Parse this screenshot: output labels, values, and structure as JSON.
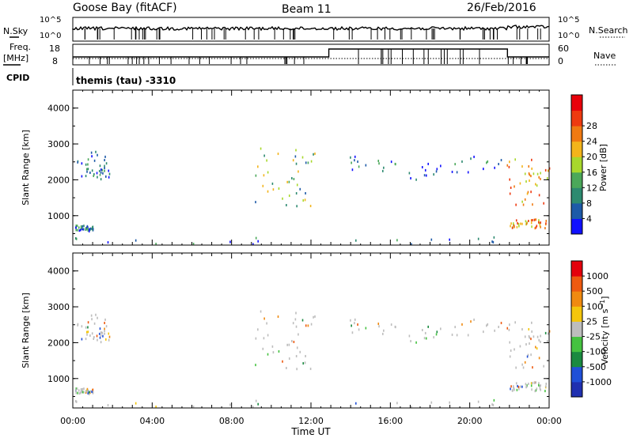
{
  "header": {
    "station": "Goose Bay (fitACF)",
    "beam": "Beam 11",
    "date": "26/Feb/2016"
  },
  "top_panels": {
    "nsky_label": "N.Sky",
    "nsearch_label": "N.Search",
    "noise_ticks": [
      "10^5",
      "10^0"
    ],
    "freq_label": "Freq.",
    "freq_unit": "[MHz]",
    "freq_ticks": [
      "18",
      "8"
    ],
    "nave_label": "Nave",
    "nave_ticks": [
      "60",
      "0"
    ],
    "cpid_label": "CPID",
    "cpid_text": "themis (tau) -3310"
  },
  "chart_data": [
    {
      "type": "scatter",
      "title": "Power",
      "xlabel": "Time UT",
      "ylabel": "Slant Range [km]",
      "xticks": [
        "00:00",
        "04:00",
        "08:00",
        "12:00",
        "16:00",
        "20:00",
        "00:00"
      ],
      "xlim_hours": [
        0,
        24
      ],
      "yticks": [
        "1000",
        "2000",
        "3000",
        "4000"
      ],
      "ylim_km": [
        180,
        4500
      ],
      "colorbar": {
        "label": "Power [dB]",
        "ticks": [
          "4",
          "8",
          "12",
          "16",
          "20",
          "24",
          "28"
        ],
        "range": [
          0,
          32
        ],
        "colors": [
          "#1010ff",
          "#1d5aa8",
          "#2d8a70",
          "#4ba85a",
          "#a8d82c",
          "#f3b41b",
          "#f07a12",
          "#ee3a10",
          "#e8000a"
        ]
      },
      "scatter_regions": [
        {
          "name": "early-echo",
          "t": [
            0.2,
            1.9
          ],
          "r": [
            2000,
            2800
          ],
          "color": "#1d5aa8"
        },
        {
          "name": "near-range-early",
          "t": [
            0.1,
            1.0
          ],
          "r": [
            560,
            720
          ],
          "color": "#1d5aa8"
        },
        {
          "name": "near-ground",
          "t": [
            0,
            22.0
          ],
          "r": [
            200,
            400
          ],
          "color": "#1d5aa8"
        },
        {
          "name": "mid-night-echo",
          "t": [
            8.9,
            12.2
          ],
          "r": [
            1250,
            2900
          ],
          "color": "#4ba85a"
        },
        {
          "name": "midday-band",
          "t": [
            13.8,
            21.8
          ],
          "r": [
            2000,
            2900
          ],
          "color": "#1d5aa8"
        },
        {
          "name": "late-strong",
          "t": [
            21.8,
            24.0
          ],
          "r": [
            1300,
            2600
          ],
          "color": "#f07a12"
        },
        {
          "name": "late-near",
          "t": [
            22.0,
            24.0
          ],
          "r": [
            650,
            900
          ],
          "color": "#f07a12"
        }
      ]
    },
    {
      "type": "scatter",
      "title": "Velocity",
      "xlabel": "Time UT",
      "ylabel": "Slant Range [km]",
      "xticks": [
        "00:00",
        "04:00",
        "08:00",
        "12:00",
        "16:00",
        "20:00",
        "00:00"
      ],
      "xlim_hours": [
        0,
        24
      ],
      "yticks": [
        "1000",
        "2000",
        "3000",
        "4000"
      ],
      "ylim_km": [
        180,
        4500
      ],
      "colorbar": {
        "label": "Velocity [m s^-1]",
        "ticks": [
          "1000",
          "500",
          "100",
          "25",
          "-25",
          "-100",
          "-500",
          "-1000"
        ],
        "colors": [
          "#2030b0",
          "#2050d8",
          "#1a8a40",
          "#45c240",
          "#bdbdbd",
          "#f4c60c",
          "#f08a10",
          "#ee5a10",
          "#e4000c"
        ]
      }
    }
  ]
}
